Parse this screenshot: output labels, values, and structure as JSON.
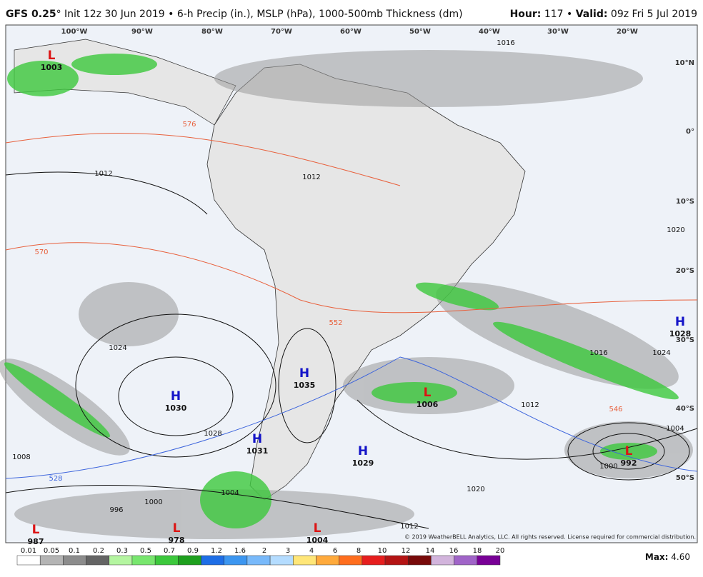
{
  "header": {
    "model": "GFS 0.25",
    "description": "° Init 12z 30 Jun 2019 • 6-h Precip (in.), MSLP (hPa), 1000-500mb Thickness (dm)",
    "hour_label": "Hour:",
    "hour_value": " 117 • ",
    "valid_label": "Valid:",
    "valid_value": " 09z Fri 5 Jul 2019"
  },
  "longitudes": [
    "100°W",
    "90°W",
    "80°W",
    "70°W",
    "60°W",
    "50°W",
    "40°W",
    "30°W",
    "20°W"
  ],
  "latitudes": [
    "10°N",
    "0°",
    "10°S",
    "20°S",
    "30°S",
    "40°S",
    "50°S"
  ],
  "centers": [
    {
      "kind": "L",
      "pressure": "1003"
    },
    {
      "kind": "H",
      "pressure": "1030"
    },
    {
      "kind": "H",
      "pressure": "1035"
    },
    {
      "kind": "H",
      "pressure": "1031"
    },
    {
      "kind": "H",
      "pressure": "1029"
    },
    {
      "kind": "H",
      "pressure": "1028"
    },
    {
      "kind": "L",
      "pressure": "1006"
    },
    {
      "kind": "L",
      "pressure": "992"
    },
    {
      "kind": "L",
      "pressure": "1004"
    },
    {
      "kind": "L",
      "pressure": "978"
    },
    {
      "kind": "L",
      "pressure": "987"
    }
  ],
  "contour_labels": [
    "1012",
    "1024",
    "1028",
    "1016",
    "1020",
    "1024",
    "1016",
    "1012",
    "1004",
    "1000",
    "1020",
    "1012",
    "996",
    "1000",
    "1004",
    "1008",
    "576",
    "570",
    "552",
    "546",
    "528",
    "1012"
  ],
  "colorbar": {
    "labels": [
      "0.01",
      "0.05",
      "0.1",
      "0.2",
      "0.3",
      "0.5",
      "0.7",
      "0.9",
      "1.2",
      "1.6",
      "2",
      "3",
      "4",
      "6",
      "8",
      "10",
      "12",
      "14",
      "16",
      "18",
      "20"
    ],
    "colors": [
      "#ffffff",
      "#b4b4b4",
      "#8c8c8c",
      "#646464",
      "#b4f5a0",
      "#78e66e",
      "#3cc83c",
      "#1ea01e",
      "#1e6ee6",
      "#3c96f0",
      "#78b9fa",
      "#b4dcff",
      "#ffe678",
      "#ffaa3c",
      "#ff6e1e",
      "#e61e1e",
      "#b41414",
      "#780a0a",
      "#d2b4dc",
      "#a064c8",
      "#780096"
    ]
  },
  "footer": {
    "max_label": "Max:",
    "max_value": " 4.60",
    "copyright": "© 2019 WeatherBELL Analytics, LLC. All rights reserved. License required for commercial distribution."
  }
}
